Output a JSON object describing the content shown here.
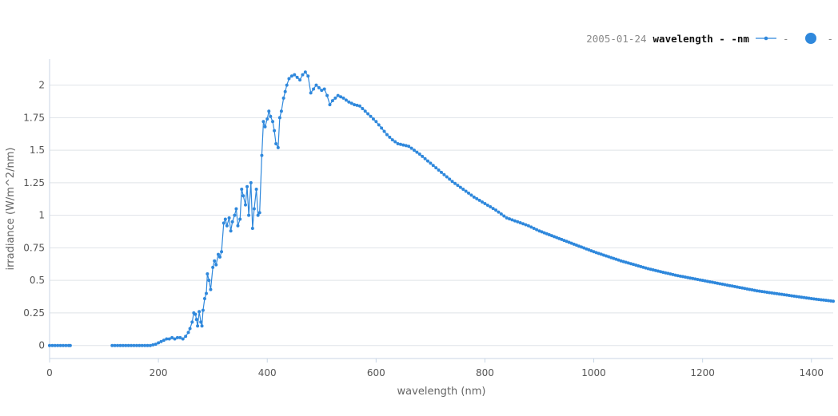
{
  "legend": {
    "date": "2005-01-24",
    "series_label": "wavelength - -nm",
    "series_suffix": "-",
    "marker_suffix": "-"
  },
  "colors": {
    "series": "#2f88dc",
    "grid": "#dfe3e8",
    "axis": "#c8d6e5",
    "tick_text": "#555555"
  },
  "chart_data": {
    "type": "line",
    "title": "",
    "xlabel": "wavelength (nm)",
    "ylabel": "irradiance (W/m^2/nm)",
    "xlim": [
      0,
      1440
    ],
    "ylim": [
      -0.1,
      2.2
    ],
    "x_ticks": [
      0,
      200,
      400,
      600,
      800,
      1000,
      1200,
      1400
    ],
    "y_ticks": [
      0,
      0.25,
      0.5,
      0.75,
      1,
      1.25,
      1.5,
      1.75,
      2
    ],
    "x_tick_labels": [
      "0",
      "200",
      "400",
      "600",
      "800",
      "1000",
      "1200",
      "1400"
    ],
    "y_tick_labels": [
      "0",
      "0.25",
      "0.5",
      "0.75",
      "1",
      "1.25",
      "1.5",
      "1.75",
      "2"
    ],
    "grid": true,
    "legend_position": "top-right",
    "series": [
      {
        "segments": [
          {
            "x": [
              0,
              5,
              10,
              15,
              20,
              25,
              30,
              35,
              38
            ],
            "y": [
              0,
              0,
              0,
              0,
              0,
              0,
              0,
              0,
              0
            ]
          },
          {
            "x": [
              115,
              130,
              150,
              170,
              185,
              195,
              200,
              205,
              210,
              215,
              220,
              225,
              230,
              235,
              240,
              245,
              250,
              255,
              258,
              262,
              265,
              268,
              270,
              272,
              275,
              278,
              280,
              282,
              285,
              288,
              290,
              293,
              296,
              300,
              303,
              306,
              310,
              313,
              316,
              320,
              323,
              326,
              330,
              333,
              336,
              340,
              343,
              346,
              350,
              353,
              356,
              360,
              363,
              366,
              370,
              373,
              376,
              380,
              383,
              386,
              390,
              393,
              396,
              400,
              403,
              406,
              410,
              413,
              416,
              420,
              423,
              426,
              430,
              433,
              436,
              440,
              445,
              450,
              455,
              460,
              465,
              470,
              475,
              480,
              485,
              490,
              495,
              500,
              505,
              510,
              515,
              520,
              525,
              530,
              540,
              550,
              560,
              570,
              580,
              590,
              600,
              610,
              620,
              630,
              640,
              650,
              660,
              670,
              680,
              700,
              720,
              740,
              760,
              780,
              800,
              820,
              840,
              860,
              880,
              900,
              950,
              1000,
              1050,
              1100,
              1150,
              1200,
              1250,
              1300,
              1350,
              1400,
              1440
            ],
            "y": [
              0,
              0,
              0,
              0,
              0,
              0.01,
              0.02,
              0.03,
              0.04,
              0.05,
              0.05,
              0.06,
              0.05,
              0.06,
              0.06,
              0.05,
              0.07,
              0.1,
              0.13,
              0.18,
              0.25,
              0.24,
              0.2,
              0.15,
              0.26,
              0.18,
              0.15,
              0.27,
              0.36,
              0.4,
              0.55,
              0.5,
              0.43,
              0.6,
              0.65,
              0.62,
              0.7,
              0.68,
              0.72,
              0.94,
              0.97,
              0.92,
              0.98,
              0.88,
              0.95,
              1.0,
              1.05,
              0.92,
              0.97,
              1.2,
              1.15,
              1.08,
              1.22,
              1.0,
              1.25,
              0.9,
              1.05,
              1.2,
              1.0,
              1.02,
              1.46,
              1.72,
              1.68,
              1.74,
              1.8,
              1.76,
              1.72,
              1.65,
              1.55,
              1.52,
              1.75,
              1.8,
              1.9,
              1.95,
              2.0,
              2.05,
              2.07,
              2.08,
              2.06,
              2.04,
              2.08,
              2.1,
              2.07,
              1.94,
              1.97,
              2.0,
              1.98,
              1.96,
              1.97,
              1.92,
              1.85,
              1.88,
              1.9,
              1.92,
              1.9,
              1.87,
              1.85,
              1.84,
              1.8,
              1.76,
              1.72,
              1.67,
              1.62,
              1.58,
              1.55,
              1.54,
              1.53,
              1.5,
              1.47,
              1.4,
              1.33,
              1.26,
              1.2,
              1.14,
              1.09,
              1.04,
              0.98,
              0.95,
              0.92,
              0.88,
              0.8,
              0.72,
              0.65,
              0.59,
              0.54,
              0.5,
              0.46,
              0.42,
              0.39,
              0.36,
              0.34
            ]
          }
        ]
      }
    ]
  }
}
